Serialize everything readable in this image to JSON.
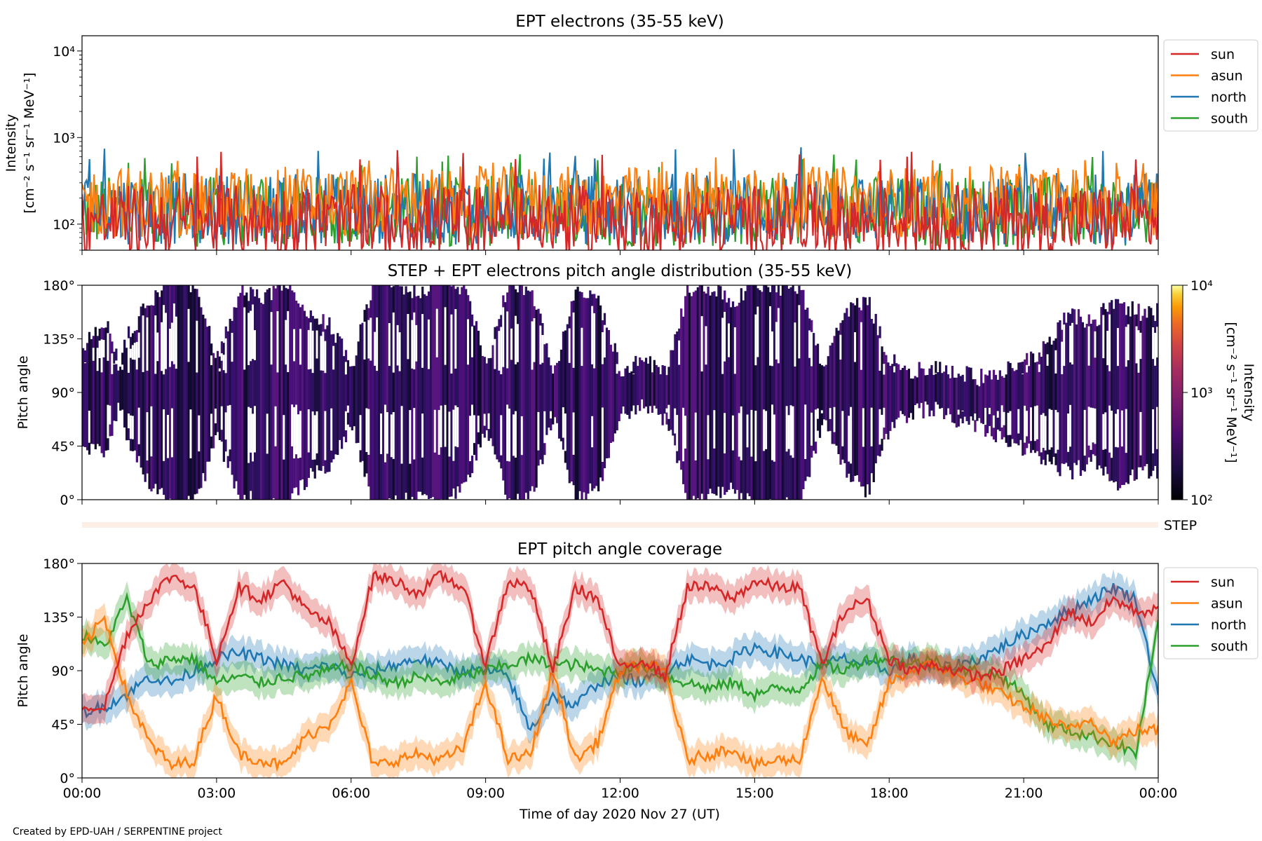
{
  "footer": {
    "credit": "Created by EPD-UAH / SERPENTINE project"
  },
  "colors": {
    "sun": "#d62728",
    "asun": "#ff7f0e",
    "north": "#1f77b4",
    "south": "#2ca02c"
  },
  "chart_data": [
    {
      "type": "line",
      "title": "EPT electrons (35-55 keV)",
      "ylabel_line1": "Intensity",
      "ylabel_line2": "[cm⁻² s⁻¹ sr⁻¹ MeV⁻¹]",
      "yscale": "log",
      "ylim": [
        50,
        15000
      ],
      "yticks": [
        "10²",
        "10³",
        "10⁴"
      ],
      "xlim_hours": [
        0,
        24
      ],
      "legend": {
        "placement": "outside-right-top",
        "entries": [
          "sun",
          "asun",
          "north",
          "south"
        ]
      },
      "series": [
        {
          "name": "sun",
          "baseline": 110,
          "peak_max": 720,
          "description_level": "mostly 60-300"
        },
        {
          "name": "asun",
          "baseline": 180,
          "peak_max": 600
        },
        {
          "name": "north",
          "baseline": 150,
          "peak_max": 800
        },
        {
          "name": "south",
          "baseline": 140,
          "peak_max": 650
        }
      ]
    },
    {
      "type": "heatmap",
      "title": "STEP + EPT electrons pitch angle distribution (35-55 keV)",
      "ylabel": "Pitch angle",
      "yticks": [
        "0°",
        "45°",
        "90°",
        "135°",
        "180°"
      ],
      "ylim": [
        0,
        180
      ],
      "xlim_hours": [
        0,
        24
      ],
      "colorbar": {
        "label_line1": "Intensity",
        "label_line2": "[cm⁻² s⁻¹ sr⁻¹ MeV⁻¹]",
        "ticks": [
          "10²",
          "10³",
          "10⁴"
        ],
        "range": [
          100,
          10000
        ],
        "scale": "log",
        "colormap": "inferno"
      },
      "step_label": "STEP"
    },
    {
      "type": "line",
      "title": "EPT pitch angle coverage",
      "ylabel": "Pitch angle",
      "yticks": [
        "0°",
        "45°",
        "90°",
        "135°",
        "180°"
      ],
      "ylim": [
        0,
        180
      ],
      "xlim_hours": [
        0,
        24
      ],
      "xlabel": "Time of day 2020 Nov 27 (UT)",
      "xticks": [
        "00:00",
        "03:00",
        "06:00",
        "09:00",
        "12:00",
        "15:00",
        "18:00",
        "21:00",
        "00:00"
      ],
      "legend": {
        "placement": "outside-right-top",
        "entries": [
          "sun",
          "asun",
          "north",
          "south"
        ]
      },
      "series": [
        {
          "name": "sun",
          "x": [
            0,
            0.5,
            1,
            1.5,
            2,
            2.5,
            3,
            3.5,
            4,
            4.5,
            5,
            5.5,
            6,
            6.5,
            7,
            7.5,
            8,
            8.5,
            9,
            9.5,
            10,
            10.5,
            11,
            11.5,
            12,
            12.5,
            13,
            13.5,
            14,
            14.5,
            15,
            15.5,
            16,
            16.5,
            17,
            17.5,
            18,
            18.5,
            19,
            19.5,
            20,
            20.5,
            21,
            21.5,
            22,
            22.5,
            23,
            23.5,
            24
          ],
          "y": [
            60,
            60,
            120,
            150,
            170,
            160,
            100,
            160,
            150,
            165,
            140,
            130,
            95,
            170,
            165,
            155,
            170,
            160,
            95,
            165,
            160,
            90,
            160,
            150,
            90,
            100,
            85,
            160,
            160,
            150,
            165,
            160,
            160,
            95,
            140,
            150,
            100,
            90,
            95,
            90,
            85,
            90,
            100,
            110,
            140,
            130,
            150,
            140,
            140
          ]
        },
        {
          "name": "asun",
          "x": [
            0,
            0.5,
            1,
            1.5,
            2,
            2.5,
            3,
            3.5,
            4,
            4.5,
            5,
            5.5,
            6,
            6.5,
            7,
            7.5,
            8,
            8.5,
            9,
            9.5,
            10,
            10.5,
            11,
            11.5,
            12,
            12.5,
            13,
            13.5,
            14,
            14.5,
            15,
            15.5,
            16,
            16.5,
            17,
            17.5,
            18,
            18.5,
            19,
            19.5,
            20,
            20.5,
            21,
            21.5,
            22,
            22.5,
            23,
            23.5,
            24
          ],
          "y": [
            110,
            135,
            70,
            30,
            10,
            15,
            70,
            20,
            15,
            10,
            35,
            45,
            80,
            10,
            15,
            20,
            15,
            25,
            80,
            15,
            20,
            90,
            15,
            30,
            90,
            95,
            90,
            15,
            20,
            25,
            10,
            15,
            15,
            85,
            40,
            25,
            80,
            90,
            95,
            85,
            80,
            70,
            60,
            50,
            40,
            50,
            30,
            40,
            40
          ]
        },
        {
          "name": "north",
          "x": [
            0,
            0.5,
            1,
            1.5,
            2,
            2.5,
            3,
            3.5,
            4,
            4.5,
            5,
            5.5,
            6,
            6.5,
            7,
            7.5,
            8,
            8.5,
            9,
            9.5,
            10,
            10.5,
            11,
            11.5,
            12,
            12.5,
            13,
            13.5,
            14,
            14.5,
            15,
            15.5,
            16,
            16.5,
            17,
            17.5,
            18,
            18.5,
            19,
            19.5,
            20,
            20.5,
            21,
            21.5,
            22,
            22.5,
            23,
            23.5,
            24
          ],
          "y": [
            55,
            60,
            70,
            85,
            80,
            90,
            100,
            105,
            100,
            95,
            90,
            95,
            85,
            90,
            95,
            100,
            95,
            90,
            90,
            85,
            40,
            70,
            60,
            80,
            85,
            80,
            90,
            100,
            95,
            100,
            110,
            105,
            100,
            95,
            100,
            95,
            90,
            100,
            90,
            95,
            100,
            110,
            120,
            130,
            140,
            150,
            160,
            150,
            70
          ]
        },
        {
          "name": "south",
          "x": [
            0,
            0.5,
            1,
            1.5,
            2,
            2.5,
            3,
            3.5,
            4,
            4.5,
            5,
            5.5,
            6,
            6.5,
            7,
            7.5,
            8,
            8.5,
            9,
            9.5,
            10,
            10.5,
            11,
            11.5,
            12,
            12.5,
            13,
            13.5,
            14,
            14.5,
            15,
            15.5,
            16,
            16.5,
            17,
            17.5,
            18,
            18.5,
            19,
            19.5,
            20,
            20.5,
            21,
            21.5,
            22,
            22.5,
            23,
            23.5,
            24
          ],
          "y": [
            120,
            110,
            150,
            95,
            100,
            100,
            80,
            85,
            80,
            85,
            85,
            90,
            95,
            85,
            80,
            85,
            80,
            85,
            90,
            95,
            100,
            95,
            95,
            90,
            90,
            95,
            85,
            80,
            75,
            80,
            70,
            75,
            75,
            95,
            90,
            100,
            100,
            95,
            100,
            90,
            90,
            85,
            70,
            45,
            40,
            35,
            30,
            20,
            130
          ]
        }
      ]
    }
  ]
}
